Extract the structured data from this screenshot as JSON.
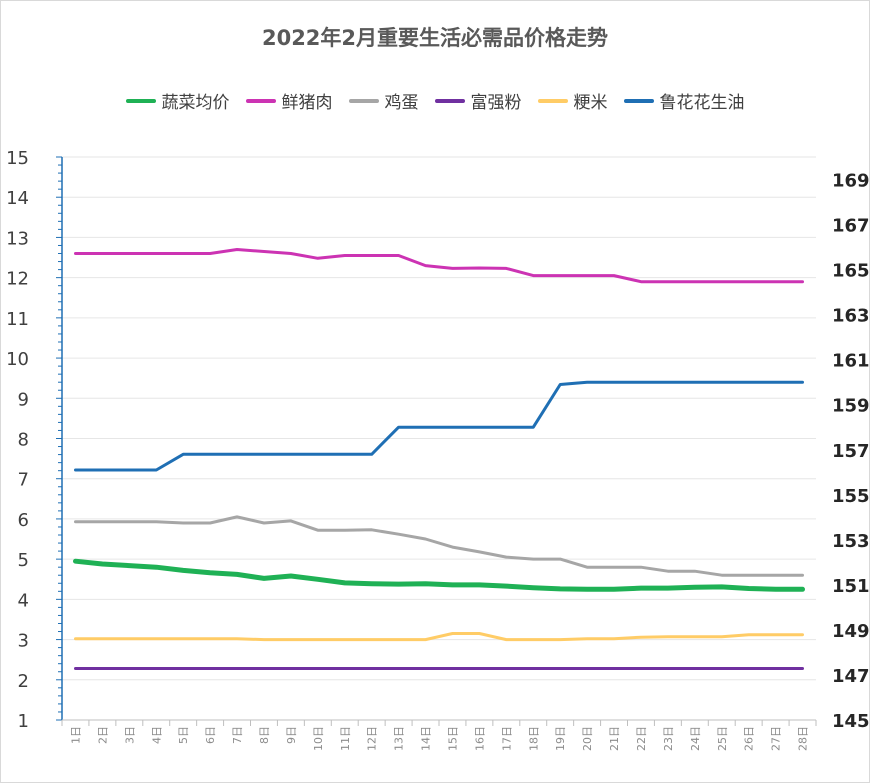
{
  "chart_data": {
    "type": "line",
    "title": "2022年2月重要生活必需品价格走势",
    "x": [
      "1日",
      "2日",
      "3日",
      "4日",
      "5日",
      "6日",
      "7日",
      "8日",
      "9日",
      "10日",
      "11日",
      "12日",
      "13日",
      "14日",
      "15日",
      "16日",
      "17日",
      "18日",
      "19日",
      "20日",
      "21日",
      "22日",
      "23日",
      "24日",
      "25日",
      "26日",
      "27日",
      "28日"
    ],
    "y_left": {
      "min": 1,
      "max": 15,
      "ticks": [
        1,
        2,
        3,
        4,
        5,
        6,
        7,
        8,
        9,
        10,
        11,
        12,
        13,
        14,
        15
      ]
    },
    "y_right": {
      "min": 145,
      "max": 170,
      "ticks": [
        145,
        147,
        149,
        151,
        153,
        155,
        157,
        159,
        161,
        163,
        165,
        167,
        169
      ]
    },
    "legend_position": "top",
    "grid": true,
    "series": [
      {
        "name": "蔬菜均价",
        "axis": "left",
        "color": "#1fb155",
        "width": 5,
        "values": [
          4.95,
          4.88,
          4.84,
          4.8,
          4.72,
          4.66,
          4.62,
          4.52,
          4.58,
          4.5,
          4.41,
          4.39,
          4.38,
          4.39,
          4.36,
          4.36,
          4.33,
          4.29,
          4.26,
          4.25,
          4.25,
          4.28,
          4.28,
          4.3,
          4.31,
          4.27,
          4.25,
          4.25
        ]
      },
      {
        "name": "鲜猪肉",
        "axis": "left",
        "color": "#cc33b3",
        "width": 3,
        "values": [
          12.6,
          12.6,
          12.6,
          12.6,
          12.6,
          12.6,
          12.7,
          12.65,
          12.6,
          12.48,
          12.55,
          12.55,
          12.55,
          12.3,
          12.23,
          12.24,
          12.23,
          12.05,
          12.05,
          12.05,
          12.05,
          11.9,
          11.9,
          11.9,
          11.9,
          11.9,
          11.9,
          11.9
        ]
      },
      {
        "name": "鸡蛋",
        "axis": "left",
        "color": "#a6a6a6",
        "width": 3,
        "values": [
          5.93,
          5.93,
          5.93,
          5.93,
          5.9,
          5.9,
          6.05,
          5.9,
          5.95,
          5.72,
          5.72,
          5.73,
          5.62,
          5.5,
          5.3,
          5.18,
          5.05,
          5,
          5,
          4.8,
          4.8,
          4.8,
          4.7,
          4.7,
          4.6,
          4.6,
          4.6,
          4.6
        ]
      },
      {
        "name": "富强粉",
        "axis": "left",
        "color": "#7030a0",
        "width": 3,
        "values": [
          2.28,
          2.28,
          2.28,
          2.28,
          2.28,
          2.28,
          2.28,
          2.28,
          2.28,
          2.28,
          2.28,
          2.28,
          2.28,
          2.28,
          2.28,
          2.28,
          2.28,
          2.28,
          2.28,
          2.28,
          2.28,
          2.28,
          2.28,
          2.28,
          2.28,
          2.28,
          2.28,
          2.28
        ]
      },
      {
        "name": "粳米",
        "axis": "left",
        "color": "#ffcc66",
        "width": 3,
        "values": [
          3.02,
          3.02,
          3.02,
          3.02,
          3.02,
          3.02,
          3.02,
          3,
          3,
          3,
          3,
          3,
          3,
          3,
          3.15,
          3.15,
          3,
          3,
          3,
          3.02,
          3.02,
          3.06,
          3.07,
          3.07,
          3.07,
          3.12,
          3.12,
          3.12
        ]
      },
      {
        "name": "鲁花花生油",
        "axis": "right",
        "color": "#1f6fb4",
        "width": 3,
        "values": [
          156.1,
          156.1,
          156.1,
          156.1,
          156.8,
          156.8,
          156.8,
          156.8,
          156.8,
          156.8,
          156.8,
          156.8,
          158,
          158,
          158,
          158,
          158,
          158,
          159.9,
          160,
          160,
          160,
          160,
          160,
          160,
          160,
          160,
          160
        ]
      }
    ]
  }
}
